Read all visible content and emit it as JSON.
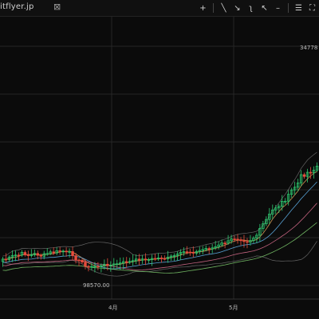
{
  "header": {
    "site_title": "itflyer.jp",
    "close_glyph": "⊠",
    "tools": [
      {
        "icon": "crosshair-icon",
        "glyph": "+"
      },
      {
        "icon": "trend-line-icon",
        "glyph": "╲"
      },
      {
        "icon": "ray-icon",
        "glyph": "↘"
      },
      {
        "icon": "curve-icon",
        "glyph": "ʅ"
      },
      {
        "icon": "arrow-icon",
        "glyph": "↖"
      },
      {
        "icon": "minus-icon",
        "glyph": "–"
      },
      {
        "icon": "menu-icon",
        "glyph": "☰"
      },
      {
        "icon": "fullscreen-icon",
        "glyph": "⛶"
      }
    ]
  },
  "chart_data": {
    "type": "candlestick",
    "x_ticks": [
      "4月",
      "5月"
    ],
    "annotations": {
      "high_label": "34778",
      "low_label": "98570.00"
    },
    "colors": {
      "up": "#2ecc71",
      "down": "#e74c3c",
      "grid": "#262626",
      "ma_fast": "#e8a35c",
      "ma_mid": "#5fb0e8",
      "ma_slow": "#d46a8a",
      "ma_long": "#7bc86c",
      "band": "#8a8a8a"
    }
  }
}
